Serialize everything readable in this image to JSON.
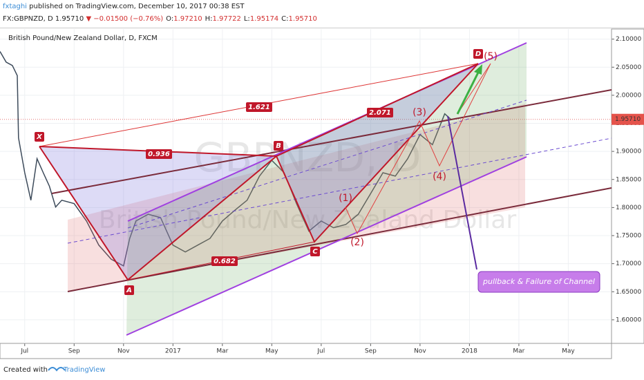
{
  "header": {
    "author": "fxtaghi",
    "published": "published on TradingView.com, December 10, 2017 00:38 EST",
    "symbol": "FX:GBPNZD, D",
    "price": "1.95710",
    "change": "▼ −0.01500 (−0.76%)",
    "ohlc": [
      {
        "label": "O:",
        "value": "1.97210"
      },
      {
        "label": "H:",
        "value": "1.97722"
      },
      {
        "label": "L:",
        "value": "1.95174"
      },
      {
        "label": "C:",
        "value": "1.95710"
      }
    ]
  },
  "chart_data": {
    "type": "line",
    "title": "British Pound/New Zealand Dollar, D, FXCM",
    "watermark": [
      "GBPNZD, D",
      "British Pound/New Zealand Dollar"
    ],
    "color": "#3c4a5a",
    "x": [
      -1,
      -0.75,
      -0.5,
      -0.3,
      -0.25,
      0,
      0.25,
      0.5,
      0.75,
      1,
      1.25,
      1.5,
      2,
      2.5,
      3,
      3.5,
      4,
      4.25,
      4.5,
      5,
      5.5,
      6,
      6.5,
      7,
      7.5,
      8,
      8.5,
      9,
      9.5,
      10,
      10.5,
      11,
      11.5,
      12,
      12.5,
      13,
      13.5,
      14,
      14.5,
      15,
      15.5,
      16,
      16.5,
      17,
      17.25
    ],
    "values": [
      2.078,
      2.059,
      2.053,
      2.035,
      1.924,
      1.862,
      1.813,
      1.887,
      1.862,
      1.838,
      1.801,
      1.813,
      1.807,
      1.776,
      1.733,
      1.708,
      1.696,
      1.745,
      1.776,
      1.788,
      1.782,
      1.733,
      1.721,
      1.733,
      1.745,
      1.776,
      1.795,
      1.813,
      1.856,
      1.884,
      1.862,
      1.807,
      1.758,
      1.776,
      1.764,
      1.77,
      1.788,
      1.825,
      1.862,
      1.856,
      1.887,
      1.93,
      1.912,
      1.967,
      1.957
    ],
    "xlim": [
      -1,
      23.75
    ],
    "xticks": [
      {
        "value": 0,
        "label": "Jul"
      },
      {
        "value": 2,
        "label": "Sep"
      },
      {
        "value": 4,
        "label": "Nov"
      },
      {
        "value": 6,
        "label": "2017"
      },
      {
        "value": 8,
        "label": "Mar"
      },
      {
        "value": 10,
        "label": "May"
      },
      {
        "value": 12,
        "label": "Jul"
      },
      {
        "value": 14,
        "label": "Sep"
      },
      {
        "value": 16,
        "label": "Nov"
      },
      {
        "value": 18,
        "label": "2018"
      },
      {
        "value": 20,
        "label": "Mar"
      },
      {
        "value": 22,
        "label": "May"
      }
    ],
    "ylim": [
      1.558,
      2.118
    ],
    "yticks": [
      {
        "value": 1.6,
        "label": "1.60000"
      },
      {
        "value": 1.65,
        "label": "1.65000"
      },
      {
        "value": 1.7,
        "label": "1.70000"
      },
      {
        "value": 1.75,
        "label": "1.75000"
      },
      {
        "value": 1.8,
        "label": "1.80000"
      },
      {
        "value": 1.85,
        "label": "1.85000"
      },
      {
        "value": 1.9,
        "label": "1.90000"
      },
      {
        "value": 1.95,
        "label": "1.95000"
      },
      {
        "value": 2.0,
        "label": "2.00000"
      },
      {
        "value": 2.05,
        "label": "2.05000"
      },
      {
        "value": 2.1,
        "label": "2.10000"
      }
    ],
    "last_price": {
      "value": 1.9571,
      "label": "1.95710"
    },
    "grid": true,
    "annotations": [
      "X",
      "A",
      "B",
      "C",
      "D",
      "0.936",
      "0.682",
      "1.621",
      "2.071",
      "(1)",
      "(2)",
      "(3)",
      "(4)",
      "(5)",
      "pullback & Failure of Channel"
    ]
  },
  "footer": {
    "created": "Created with",
    "brand": "TradingView"
  }
}
